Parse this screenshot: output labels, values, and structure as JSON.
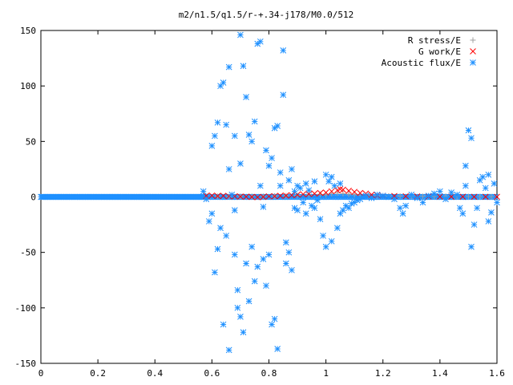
{
  "chart_data": {
    "type": "scatter",
    "title": "m2/n1.5/q1.5/r-+.34-j178/M0.0/512",
    "xlabel": "",
    "ylabel": "",
    "xlim": [
      0,
      1.6
    ],
    "ylim": [
      -150,
      150
    ],
    "x_ticks": [
      "0",
      "0.2",
      "0.4",
      "0.6",
      "0.8",
      "1",
      "1.2",
      "1.4",
      "1.6"
    ],
    "y_ticks": [
      "150",
      "100",
      "50",
      "0",
      "-50",
      "-100",
      "-150"
    ],
    "grid": false,
    "legend_position": "top-right",
    "series": [
      {
        "name": "R stress/E",
        "marker": "plus",
        "color": "#a0a0a0",
        "points": [
          [
            0.62,
            0.5
          ],
          [
            0.66,
            0.3
          ],
          [
            0.7,
            0.4
          ],
          [
            0.74,
            0.5
          ],
          [
            0.78,
            0.6
          ],
          [
            0.82,
            0.8
          ],
          [
            0.86,
            1.0
          ],
          [
            0.9,
            1.4
          ],
          [
            0.94,
            1.8
          ],
          [
            0.98,
            2.2
          ],
          [
            1.0,
            2.0
          ],
          [
            1.02,
            3.0
          ],
          [
            1.04,
            3.5
          ],
          [
            1.06,
            3.0
          ],
          [
            1.08,
            2.5
          ],
          [
            1.1,
            2.0
          ],
          [
            1.12,
            1.6
          ],
          [
            1.15,
            1.2
          ],
          [
            1.18,
            1.0
          ],
          [
            1.22,
            0.8
          ],
          [
            1.26,
            0.7
          ],
          [
            1.3,
            0.6
          ],
          [
            1.34,
            0.5
          ],
          [
            1.38,
            0.4
          ],
          [
            1.42,
            0.4
          ],
          [
            1.46,
            0.3
          ],
          [
            1.5,
            0.3
          ],
          [
            1.54,
            0.2
          ],
          [
            1.58,
            0.2
          ]
        ]
      },
      {
        "name": "G work/E",
        "marker": "cross",
        "color": "#ff0000",
        "points": [
          [
            0.58,
            1.0
          ],
          [
            0.6,
            1.2
          ],
          [
            0.62,
            0.8
          ],
          [
            0.64,
            1.0
          ],
          [
            0.66,
            0.5
          ],
          [
            0.68,
            0.5
          ],
          [
            0.7,
            0.3
          ],
          [
            0.72,
            0.2
          ],
          [
            0.74,
            0.0
          ],
          [
            0.76,
            -0.3
          ],
          [
            0.78,
            0.0
          ],
          [
            0.8,
            0.5
          ],
          [
            0.82,
            0.6
          ],
          [
            0.84,
            1.0
          ],
          [
            0.86,
            1.2
          ],
          [
            0.88,
            1.5
          ],
          [
            0.9,
            2.0
          ],
          [
            0.92,
            2.4
          ],
          [
            0.94,
            2.6
          ],
          [
            0.96,
            3.0
          ],
          [
            0.98,
            3.5
          ],
          [
            1.0,
            4.0
          ],
          [
            1.02,
            5.0
          ],
          [
            1.04,
            6.0
          ],
          [
            1.05,
            7.0
          ],
          [
            1.06,
            6.5
          ],
          [
            1.08,
            5.5
          ],
          [
            1.1,
            4.5
          ],
          [
            1.12,
            3.5
          ],
          [
            1.14,
            3.0
          ],
          [
            1.16,
            2.0
          ],
          [
            1.18,
            1.5
          ],
          [
            1.2,
            1.0
          ],
          [
            1.24,
            0.8
          ],
          [
            1.28,
            0.6
          ],
          [
            1.32,
            0.5
          ],
          [
            1.36,
            0.4
          ],
          [
            1.4,
            0.3
          ],
          [
            1.44,
            0.2
          ],
          [
            1.48,
            0.2
          ],
          [
            1.52,
            0.1
          ],
          [
            1.56,
            0.1
          ],
          [
            1.6,
            0.1
          ]
        ]
      },
      {
        "name": "Acoustic flux/E",
        "marker": "star",
        "color": "#1e90ff",
        "points": [
          [
            0.57,
            5
          ],
          [
            0.58,
            -2
          ],
          [
            0.59,
            -22
          ],
          [
            0.6,
            -15
          ],
          [
            0.6,
            46
          ],
          [
            0.61,
            55
          ],
          [
            0.61,
            -68
          ],
          [
            0.62,
            67
          ],
          [
            0.62,
            -47
          ],
          [
            0.63,
            -28
          ],
          [
            0.63,
            100
          ],
          [
            0.64,
            103
          ],
          [
            0.64,
            -115
          ],
          [
            0.65,
            65
          ],
          [
            0.65,
            -35
          ],
          [
            0.66,
            117
          ],
          [
            0.66,
            25
          ],
          [
            0.66,
            -138
          ],
          [
            0.67,
            2
          ],
          [
            0.68,
            -12
          ],
          [
            0.68,
            -52
          ],
          [
            0.68,
            55
          ],
          [
            0.69,
            -84
          ],
          [
            0.69,
            -100
          ],
          [
            0.7,
            30
          ],
          [
            0.7,
            -108
          ],
          [
            0.7,
            146
          ],
          [
            0.71,
            118
          ],
          [
            0.71,
            -122
          ],
          [
            0.72,
            90
          ],
          [
            0.72,
            -60
          ],
          [
            0.73,
            -94
          ],
          [
            0.73,
            56
          ],
          [
            0.74,
            -45
          ],
          [
            0.74,
            50
          ],
          [
            0.75,
            68
          ],
          [
            0.75,
            -76
          ],
          [
            0.76,
            138
          ],
          [
            0.76,
            -63
          ],
          [
            0.77,
            140
          ],
          [
            0.77,
            10
          ],
          [
            0.78,
            -9
          ],
          [
            0.78,
            -56
          ],
          [
            0.79,
            42
          ],
          [
            0.79,
            -80
          ],
          [
            0.8,
            -52
          ],
          [
            0.8,
            28
          ],
          [
            0.81,
            -115
          ],
          [
            0.81,
            35
          ],
          [
            0.82,
            -110
          ],
          [
            0.82,
            62
          ],
          [
            0.83,
            64
          ],
          [
            0.83,
            -137
          ],
          [
            0.84,
            22
          ],
          [
            0.84,
            10
          ],
          [
            0.85,
            132
          ],
          [
            0.85,
            92
          ],
          [
            0.86,
            -41
          ],
          [
            0.86,
            -60
          ],
          [
            0.87,
            -50
          ],
          [
            0.87,
            15
          ],
          [
            0.88,
            -66
          ],
          [
            0.88,
            25
          ],
          [
            0.89,
            5
          ],
          [
            0.89,
            -10
          ],
          [
            0.9,
            -12
          ],
          [
            0.9,
            10
          ],
          [
            0.91,
            8
          ],
          [
            0.92,
            -5
          ],
          [
            0.93,
            12
          ],
          [
            0.93,
            -15
          ],
          [
            0.94,
            6
          ],
          [
            0.95,
            -8
          ],
          [
            0.96,
            14
          ],
          [
            0.96,
            -10
          ],
          [
            0.97,
            -3
          ],
          [
            0.98,
            -20
          ],
          [
            0.99,
            -35
          ],
          [
            1.0,
            -45
          ],
          [
            1.0,
            20
          ],
          [
            1.01,
            14
          ],
          [
            1.02,
            -40
          ],
          [
            1.02,
            18
          ],
          [
            1.03,
            10
          ],
          [
            1.04,
            -28
          ],
          [
            1.05,
            -15
          ],
          [
            1.05,
            12
          ],
          [
            1.06,
            -12
          ],
          [
            1.07,
            -8
          ],
          [
            1.08,
            -10
          ],
          [
            1.09,
            -6
          ],
          [
            1.1,
            -5
          ],
          [
            1.11,
            -3
          ],
          [
            1.12,
            -2
          ],
          [
            1.13,
            0
          ],
          [
            1.14,
            1
          ],
          [
            1.16,
            -1
          ],
          [
            1.18,
            2
          ],
          [
            1.2,
            1
          ],
          [
            1.22,
            0
          ],
          [
            1.24,
            -2
          ],
          [
            1.26,
            -10
          ],
          [
            1.27,
            -15
          ],
          [
            1.28,
            -8
          ],
          [
            1.3,
            2
          ],
          [
            1.32,
            -1
          ],
          [
            1.34,
            -5
          ],
          [
            1.36,
            1
          ],
          [
            1.38,
            3
          ],
          [
            1.4,
            5
          ],
          [
            1.42,
            -2
          ],
          [
            1.44,
            4
          ],
          [
            1.46,
            2
          ],
          [
            1.47,
            -10
          ],
          [
            1.48,
            -15
          ],
          [
            1.49,
            10
          ],
          [
            1.49,
            28
          ],
          [
            1.5,
            60
          ],
          [
            1.51,
            53
          ],
          [
            1.51,
            -45
          ],
          [
            1.52,
            -25
          ],
          [
            1.53,
            -10
          ],
          [
            1.54,
            15
          ],
          [
            1.55,
            18
          ],
          [
            1.56,
            8
          ],
          [
            1.57,
            20
          ],
          [
            1.57,
            -22
          ],
          [
            1.58,
            -14
          ],
          [
            1.59,
            12
          ],
          [
            1.6,
            -5
          ]
        ]
      }
    ]
  }
}
